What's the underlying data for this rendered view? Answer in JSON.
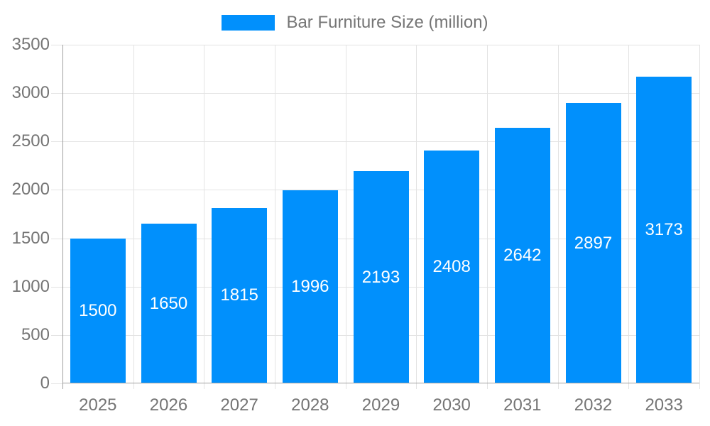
{
  "chart_data": {
    "type": "bar",
    "title": "Bar Furniture Size (million)",
    "categories": [
      "2025",
      "2026",
      "2027",
      "2028",
      "2029",
      "2030",
      "2031",
      "2032",
      "2033"
    ],
    "values": [
      1500,
      1650,
      1815,
      1996,
      2193,
      2408,
      2642,
      2897,
      3173
    ],
    "xlabel": "",
    "ylabel": "",
    "ylim": [
      0,
      3500
    ],
    "ytick_step": 500,
    "ytick_labels": [
      "0",
      "500",
      "1000",
      "1500",
      "2000",
      "2500",
      "3000",
      "3500"
    ],
    "grid": "both",
    "legend_position": "top-center",
    "value_labels": "centered-inside-bars",
    "colors": {
      "bar": "#0190FC",
      "value_label": "#FFFFFF",
      "axis_text": "#757575",
      "gridline": "#E3E3E3",
      "axis_line": "#A0A0A0",
      "background": "#FFFFFF"
    }
  }
}
